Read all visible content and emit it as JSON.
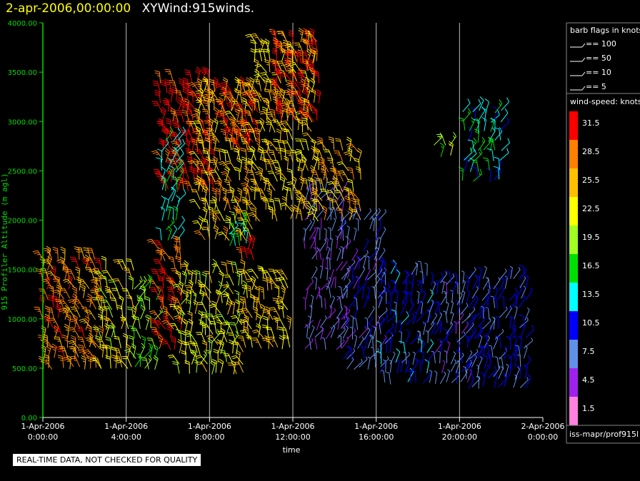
{
  "title": {
    "datetime": "2-apr-2006,00:00:00",
    "product": "XYWind:915winds."
  },
  "chart_data": {
    "type": "wind-barb-time-height",
    "xlabel": "time",
    "ylabel": "915 Profiler Altitude (m agl)",
    "ylim": [
      0,
      4000
    ],
    "yticks": [
      "0.00",
      "500.00",
      "1000.00",
      "1500.00",
      "2000.00",
      "2500.00",
      "3000.00",
      "3500.00",
      "4000.00"
    ],
    "x_range_hours": [
      0,
      24
    ],
    "xticks": [
      {
        "date": "1-Apr-2006",
        "time": "0:00:00",
        "hour": 0
      },
      {
        "date": "1-Apr-2006",
        "time": "4:00:00",
        "hour": 4
      },
      {
        "date": "1-Apr-2006",
        "time": "8:00:00",
        "hour": 8
      },
      {
        "date": "1-Apr-2006",
        "time": "12:00:00",
        "hour": 12
      },
      {
        "date": "1-Apr-2006",
        "time": "16:00:00",
        "hour": 16
      },
      {
        "date": "1-Apr-2006",
        "time": "20:00:00",
        "hour": 20
      },
      {
        "date": "2-Apr-2006",
        "time": "0:00:00",
        "hour": 24
      }
    ],
    "grid": "vertical lines at every 4 hours",
    "barb_legend": {
      "title": "barb flags in knots",
      "entries": [
        "== 100",
        "== 50",
        "== 10",
        "== 5"
      ]
    },
    "color_scale": {
      "title": "wind-speed: knots",
      "levels": [
        {
          "label": "31.5",
          "color": "#ff0000"
        },
        {
          "label": "28.5",
          "color": "#ff8000"
        },
        {
          "label": "25.5",
          "color": "#ffbf00"
        },
        {
          "label": "22.5",
          "color": "#ffff00"
        },
        {
          "label": "19.5",
          "color": "#a0ff20"
        },
        {
          "label": "16.5",
          "color": "#00e000"
        },
        {
          "label": "13.5",
          "color": "#00ffff"
        },
        {
          "label": "10.5",
          "color": "#0000ff"
        },
        {
          "label": "7.5",
          "color": "#6090e8"
        },
        {
          "label": "4.5",
          "color": "#a020f0"
        },
        {
          "label": "1.5",
          "color": "#ff80e0"
        }
      ]
    },
    "regions": [
      {
        "h": [
          0.0,
          2.8
        ],
        "z": [
          500,
          1600
        ],
        "speed": 28
      },
      {
        "h": [
          2.8,
          4.4
        ],
        "z": [
          500,
          1500
        ],
        "speed": 23
      },
      {
        "h": [
          4.4,
          5.6
        ],
        "z": [
          500,
          1300
        ],
        "speed": 18
      },
      {
        "h": [
          5.6,
          6.6
        ],
        "z": [
          700,
          1700
        ],
        "speed": 30
      },
      {
        "h": [
          6.6,
          9.8
        ],
        "z": [
          450,
          1500
        ],
        "speed": 22
      },
      {
        "h": [
          9.8,
          12.0
        ],
        "z": [
          700,
          1400
        ],
        "speed": 24
      },
      {
        "h": [
          5.7,
          8.4
        ],
        "z": [
          2300,
          3400
        ],
        "speed": 31
      },
      {
        "h": [
          5.7,
          6.6
        ],
        "z": [
          1800,
          2800
        ],
        "speed": 15
      },
      {
        "h": [
          7.5,
          10.2
        ],
        "z": [
          1800,
          3300
        ],
        "speed": 25
      },
      {
        "h": [
          8.8,
          10.5
        ],
        "z": [
          2700,
          3300
        ],
        "speed": 31
      },
      {
        "h": [
          10.2,
          13.0
        ],
        "z": [
          2000,
          3800
        ],
        "speed": 24
      },
      {
        "h": [
          11.2,
          13.2
        ],
        "z": [
          3000,
          3800
        ],
        "speed": 31
      },
      {
        "h": [
          12.6,
          14.4
        ],
        "z": [
          700,
          2300
        ],
        "speed": 6
      },
      {
        "h": [
          14.4,
          16.2
        ],
        "z": [
          500,
          2000
        ],
        "speed": 8
      },
      {
        "h": [
          13.2,
          15.4
        ],
        "z": [
          2000,
          2700
        ],
        "speed": 26
      },
      {
        "h": [
          16.2,
          18.6
        ],
        "z": [
          350,
          1500
        ],
        "speed": 10
      },
      {
        "h": [
          18.6,
          20.4
        ],
        "z": [
          350,
          1350
        ],
        "speed": 8
      },
      {
        "h": [
          20.4,
          23.2
        ],
        "z": [
          300,
          1400
        ],
        "speed": 9
      },
      {
        "h": [
          20.2,
          22.0
        ],
        "z": [
          2400,
          3100
        ],
        "speed": 14
      },
      {
        "h": [
          18.8,
          19.6
        ],
        "z": [
          2650,
          2750
        ],
        "speed": 20
      },
      {
        "h": [
          9.0,
          9.8
        ],
        "z": [
          1750,
          1950
        ],
        "speed": 16
      },
      {
        "h": [
          9.6,
          10.2
        ],
        "z": [
          1600,
          1750
        ],
        "speed": 31
      }
    ]
  },
  "side_label": "iss-mapr/prof915l",
  "footer": "REAL-TIME DATA, NOT CHECKED FOR QUALITY"
}
